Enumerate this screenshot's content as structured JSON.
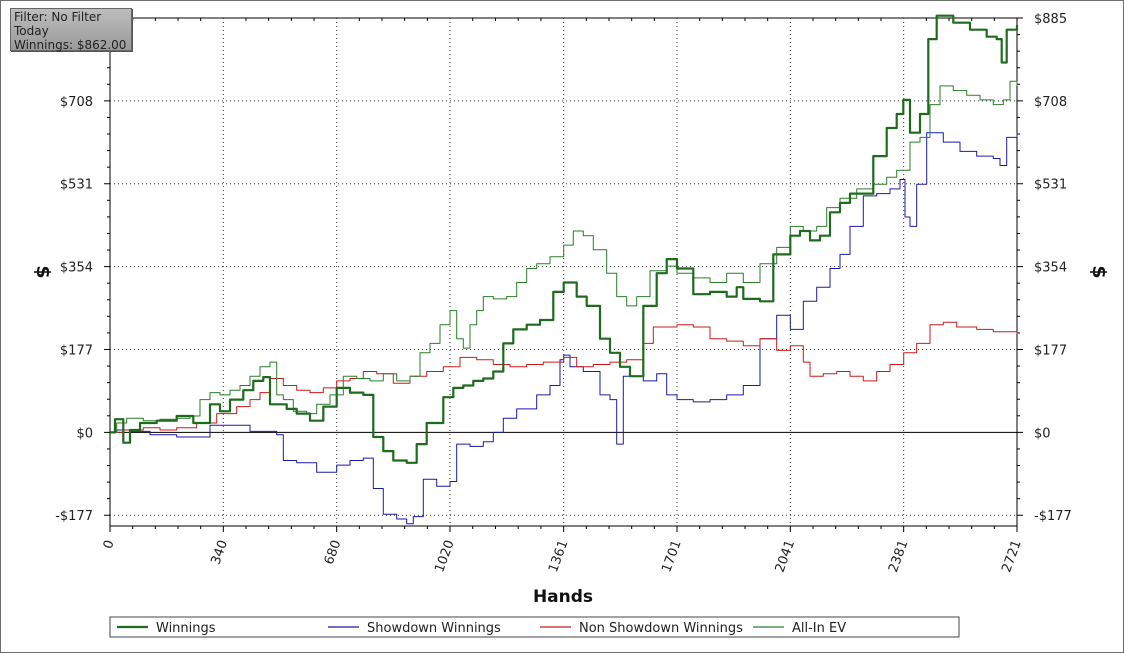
{
  "filter_box": {
    "filter": "Filter: No Filter",
    "period": "Today",
    "winnings": "Winnings: $862.00"
  },
  "chart_data": {
    "type": "line",
    "title": "",
    "xlabel": "Hands",
    "ylabel": "$",
    "xlim": [
      0,
      2721
    ],
    "ylim": [
      -200,
      885
    ],
    "x_ticks": [
      0,
      340,
      680,
      1020,
      1361,
      1701,
      2041,
      2381,
      2721
    ],
    "y_ticks": [
      -177,
      0,
      177,
      354,
      531,
      708,
      885
    ],
    "y_tick_labels": [
      "-$177",
      "$0",
      "$177",
      "$354",
      "$531",
      "$708",
      "$885"
    ],
    "grid": true,
    "legend_position": "bottom",
    "series": [
      {
        "name": "Winnings",
        "color": "#1e6b1e",
        "points": [
          [
            0,
            0
          ],
          [
            15,
            28
          ],
          [
            40,
            -22
          ],
          [
            60,
            5
          ],
          [
            90,
            20
          ],
          [
            140,
            25
          ],
          [
            200,
            35
          ],
          [
            250,
            20
          ],
          [
            300,
            60
          ],
          [
            330,
            45
          ],
          [
            360,
            70
          ],
          [
            400,
            90
          ],
          [
            430,
            110
          ],
          [
            460,
            118
          ],
          [
            480,
            60
          ],
          [
            530,
            50
          ],
          [
            560,
            40
          ],
          [
            600,
            25
          ],
          [
            640,
            55
          ],
          [
            680,
            95
          ],
          [
            720,
            85
          ],
          [
            760,
            80
          ],
          [
            790,
            -10
          ],
          [
            820,
            -40
          ],
          [
            850,
            -60
          ],
          [
            890,
            -65
          ],
          [
            920,
            -25
          ],
          [
            950,
            20
          ],
          [
            1000,
            75
          ],
          [
            1030,
            95
          ],
          [
            1060,
            100
          ],
          [
            1090,
            110
          ],
          [
            1120,
            115
          ],
          [
            1150,
            130
          ],
          [
            1180,
            190
          ],
          [
            1210,
            220
          ],
          [
            1250,
            230
          ],
          [
            1290,
            240
          ],
          [
            1330,
            300
          ],
          [
            1361,
            320
          ],
          [
            1400,
            290
          ],
          [
            1430,
            270
          ],
          [
            1470,
            200
          ],
          [
            1500,
            170
          ],
          [
            1530,
            140
          ],
          [
            1560,
            120
          ],
          [
            1600,
            270
          ],
          [
            1640,
            340
          ],
          [
            1670,
            370
          ],
          [
            1701,
            350
          ],
          [
            1750,
            295
          ],
          [
            1800,
            300
          ],
          [
            1850,
            290
          ],
          [
            1880,
            310
          ],
          [
            1900,
            285
          ],
          [
            1950,
            280
          ],
          [
            1990,
            380
          ],
          [
            2041,
            420
          ],
          [
            2070,
            430
          ],
          [
            2100,
            410
          ],
          [
            2130,
            420
          ],
          [
            2160,
            470
          ],
          [
            2190,
            490
          ],
          [
            2220,
            510
          ],
          [
            2260,
            510
          ],
          [
            2290,
            590
          ],
          [
            2330,
            650
          ],
          [
            2360,
            680
          ],
          [
            2380,
            710
          ],
          [
            2400,
            640
          ],
          [
            2430,
            680
          ],
          [
            2455,
            840
          ],
          [
            2480,
            890
          ],
          [
            2530,
            875
          ],
          [
            2580,
            860
          ],
          [
            2630,
            845
          ],
          [
            2660,
            840
          ],
          [
            2675,
            790
          ],
          [
            2690,
            860
          ],
          [
            2721,
            870
          ]
        ]
      },
      {
        "name": "Showdown Winnings",
        "color": "#1a1aa8",
        "points": [
          [
            0,
            0
          ],
          [
            20,
            5
          ],
          [
            60,
            2
          ],
          [
            120,
            -5
          ],
          [
            200,
            -10
          ],
          [
            300,
            15
          ],
          [
            420,
            2
          ],
          [
            500,
            -5
          ],
          [
            520,
            -60
          ],
          [
            560,
            -65
          ],
          [
            620,
            -85
          ],
          [
            680,
            -70
          ],
          [
            720,
            -60
          ],
          [
            760,
            -55
          ],
          [
            790,
            -120
          ],
          [
            820,
            -175
          ],
          [
            860,
            -185
          ],
          [
            890,
            -195
          ],
          [
            910,
            -180
          ],
          [
            940,
            -100
          ],
          [
            980,
            -115
          ],
          [
            1020,
            -105
          ],
          [
            1040,
            -25
          ],
          [
            1080,
            -30
          ],
          [
            1120,
            -20
          ],
          [
            1150,
            0
          ],
          [
            1180,
            30
          ],
          [
            1220,
            50
          ],
          [
            1280,
            80
          ],
          [
            1320,
            100
          ],
          [
            1350,
            155
          ],
          [
            1361,
            165
          ],
          [
            1380,
            140
          ],
          [
            1420,
            130
          ],
          [
            1470,
            80
          ],
          [
            1500,
            70
          ],
          [
            1520,
            -25
          ],
          [
            1540,
            120
          ],
          [
            1600,
            110
          ],
          [
            1640,
            125
          ],
          [
            1670,
            80
          ],
          [
            1701,
            70
          ],
          [
            1750,
            65
          ],
          [
            1800,
            70
          ],
          [
            1850,
            80
          ],
          [
            1900,
            100
          ],
          [
            1950,
            200
          ],
          [
            2000,
            250
          ],
          [
            2041,
            220
          ],
          [
            2080,
            280
          ],
          [
            2120,
            310
          ],
          [
            2160,
            350
          ],
          [
            2190,
            380
          ],
          [
            2220,
            440
          ],
          [
            2260,
            505
          ],
          [
            2300,
            510
          ],
          [
            2340,
            520
          ],
          [
            2370,
            540
          ],
          [
            2385,
            460
          ],
          [
            2400,
            440
          ],
          [
            2420,
            530
          ],
          [
            2450,
            640
          ],
          [
            2500,
            620
          ],
          [
            2550,
            600
          ],
          [
            2600,
            590
          ],
          [
            2650,
            585
          ],
          [
            2670,
            570
          ],
          [
            2690,
            630
          ],
          [
            2721,
            640
          ]
        ]
      },
      {
        "name": "Non Showdown Winnings",
        "color": "#cc1a1a",
        "points": [
          [
            0,
            0
          ],
          [
            40,
            5
          ],
          [
            100,
            10
          ],
          [
            150,
            5
          ],
          [
            200,
            10
          ],
          [
            260,
            20
          ],
          [
            320,
            40
          ],
          [
            380,
            55
          ],
          [
            420,
            70
          ],
          [
            450,
            85
          ],
          [
            480,
            115
          ],
          [
            520,
            100
          ],
          [
            560,
            90
          ],
          [
            600,
            85
          ],
          [
            640,
            95
          ],
          [
            680,
            110
          ],
          [
            720,
            115
          ],
          [
            760,
            130
          ],
          [
            800,
            125
          ],
          [
            850,
            105
          ],
          [
            900,
            120
          ],
          [
            950,
            130
          ],
          [
            1000,
            140
          ],
          [
            1050,
            160
          ],
          [
            1100,
            155
          ],
          [
            1150,
            145
          ],
          [
            1200,
            140
          ],
          [
            1250,
            145
          ],
          [
            1300,
            150
          ],
          [
            1361,
            160
          ],
          [
            1400,
            140
          ],
          [
            1450,
            145
          ],
          [
            1500,
            150
          ],
          [
            1550,
            155
          ],
          [
            1600,
            190
          ],
          [
            1630,
            225
          ],
          [
            1701,
            230
          ],
          [
            1750,
            225
          ],
          [
            1800,
            200
          ],
          [
            1850,
            195
          ],
          [
            1900,
            185
          ],
          [
            1950,
            200
          ],
          [
            2000,
            175
          ],
          [
            2041,
            185
          ],
          [
            2080,
            150
          ],
          [
            2100,
            120
          ],
          [
            2140,
            125
          ],
          [
            2180,
            130
          ],
          [
            2220,
            120
          ],
          [
            2260,
            110
          ],
          [
            2300,
            130
          ],
          [
            2340,
            145
          ],
          [
            2381,
            170
          ],
          [
            2420,
            190
          ],
          [
            2460,
            230
          ],
          [
            2500,
            235
          ],
          [
            2540,
            225
          ],
          [
            2600,
            220
          ],
          [
            2650,
            215
          ],
          [
            2721,
            210
          ]
        ]
      },
      {
        "name": "All-In EV",
        "color": "#2a7d2a",
        "points": [
          [
            0,
            0
          ],
          [
            20,
            20
          ],
          [
            50,
            30
          ],
          [
            100,
            25
          ],
          [
            150,
            28
          ],
          [
            200,
            30
          ],
          [
            240,
            35
          ],
          [
            270,
            70
          ],
          [
            300,
            85
          ],
          [
            330,
            80
          ],
          [
            360,
            90
          ],
          [
            390,
            100
          ],
          [
            420,
            120
          ],
          [
            450,
            140
          ],
          [
            480,
            150
          ],
          [
            500,
            80
          ],
          [
            520,
            70
          ],
          [
            550,
            45
          ],
          [
            590,
            40
          ],
          [
            620,
            60
          ],
          [
            660,
            80
          ],
          [
            700,
            120
          ],
          [
            740,
            115
          ],
          [
            780,
            110
          ],
          [
            820,
            125
          ],
          [
            860,
            110
          ],
          [
            900,
            120
          ],
          [
            930,
            170
          ],
          [
            960,
            190
          ],
          [
            990,
            230
          ],
          [
            1020,
            260
          ],
          [
            1040,
            200
          ],
          [
            1060,
            180
          ],
          [
            1080,
            230
          ],
          [
            1100,
            260
          ],
          [
            1120,
            290
          ],
          [
            1150,
            285
          ],
          [
            1190,
            290
          ],
          [
            1220,
            320
          ],
          [
            1250,
            350
          ],
          [
            1280,
            360
          ],
          [
            1320,
            375
          ],
          [
            1361,
            400
          ],
          [
            1390,
            430
          ],
          [
            1420,
            420
          ],
          [
            1450,
            390
          ],
          [
            1490,
            340
          ],
          [
            1520,
            290
          ],
          [
            1550,
            270
          ],
          [
            1580,
            290
          ],
          [
            1620,
            345
          ],
          [
            1670,
            355
          ],
          [
            1701,
            340
          ],
          [
            1750,
            330
          ],
          [
            1800,
            320
          ],
          [
            1850,
            340
          ],
          [
            1900,
            320
          ],
          [
            1950,
            360
          ],
          [
            2000,
            395
          ],
          [
            2041,
            440
          ],
          [
            2080,
            430
          ],
          [
            2120,
            440
          ],
          [
            2150,
            480
          ],
          [
            2190,
            500
          ],
          [
            2240,
            520
          ],
          [
            2290,
            530
          ],
          [
            2330,
            545
          ],
          [
            2360,
            560
          ],
          [
            2381,
            560
          ],
          [
            2400,
            620
          ],
          [
            2430,
            630
          ],
          [
            2460,
            700
          ],
          [
            2490,
            740
          ],
          [
            2530,
            730
          ],
          [
            2570,
            720
          ],
          [
            2610,
            710
          ],
          [
            2650,
            700
          ],
          [
            2680,
            710
          ],
          [
            2700,
            750
          ],
          [
            2721,
            740
          ]
        ]
      }
    ]
  }
}
